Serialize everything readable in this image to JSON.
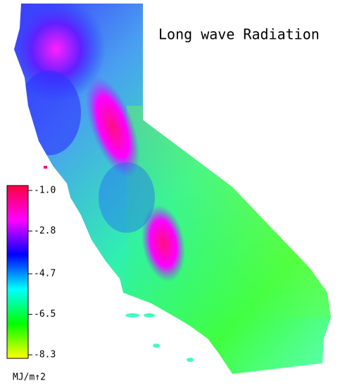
{
  "title": "Long wave Radiation",
  "colorbar": {
    "colors": [
      "#ff0040",
      "#ff00ff",
      "#0000ff",
      "#00ffff",
      "#00ff00",
      "#ffff00"
    ],
    "ticks": [
      {
        "value": -1.0,
        "label": "-1.0"
      },
      {
        "value": -2.8,
        "label": "-2.8"
      },
      {
        "value": -4.7,
        "label": "-4.7"
      },
      {
        "value": -6.5,
        "label": "-6.5"
      },
      {
        "value": -8.3,
        "label": "-8.3"
      }
    ],
    "unit": "MJ/m↑2"
  }
}
